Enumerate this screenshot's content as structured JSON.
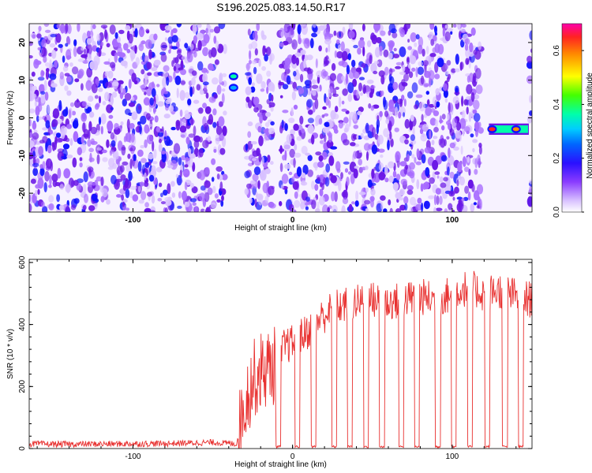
{
  "title": "S196.2025.083.14.50.R17",
  "colors": {
    "snr_line": "#e8302f",
    "colormap": [
      "#f7f2ff",
      "#d9c2ff",
      "#a86cff",
      "#6a16e6",
      "#1010ff",
      "#00aaff",
      "#00ffaa",
      "#ffff00",
      "#ff8800",
      "#ff2222",
      "#ff00aa"
    ]
  },
  "chart_data": [
    {
      "type": "heatmap",
      "xlabel": "Height of straight line (km)",
      "ylabel": "Frequency (Hz)",
      "xlim": [
        -165,
        150
      ],
      "ylim": [
        -25,
        25
      ],
      "xticks": [
        -100,
        0,
        100
      ],
      "yticks": [
        -20,
        -10,
        0,
        10,
        20
      ],
      "colorbar": {
        "label": "Normalized spectral amplitude",
        "range": [
          0.0,
          0.7
        ],
        "ticks": [
          0.0,
          0.2,
          0.4,
          0.6
        ]
      },
      "gaps_x": [
        [
          -42,
          -29
        ],
        [
          -12,
          -8
        ],
        [
          118,
          148
        ]
      ],
      "hotspots": [
        {
          "x": -37,
          "y": 11,
          "value": 0.35
        },
        {
          "x": -37,
          "y": 8,
          "value": 0.25
        },
        {
          "x": 125,
          "y": -3,
          "value": 0.6
        },
        {
          "x": 140,
          "y": -3,
          "value": 0.5
        }
      ]
    },
    {
      "type": "line",
      "xlabel": "Height of straight line (km)",
      "ylabel": "SNR (10 * v/v)",
      "xlim": [
        -165,
        150
      ],
      "ylim": [
        0,
        610
      ],
      "xticks": [
        -100,
        0,
        100
      ],
      "yticks": [
        0,
        200,
        400,
        600
      ],
      "series": [
        {
          "x": [
            -165,
            -140,
            -110,
            -80,
            -50,
            -35,
            -30,
            -25,
            -20,
            -15,
            -10,
            -8,
            -5,
            0,
            5,
            10,
            15,
            20,
            25,
            30,
            40,
            50,
            60,
            70,
            80,
            90,
            100,
            110,
            120,
            130,
            140,
            150
          ],
          "y": [
            15,
            14,
            15,
            16,
            20,
            15,
            150,
            220,
            250,
            260,
            270,
            300,
            330,
            340,
            360,
            380,
            410,
            430,
            450,
            460,
            470,
            480,
            470,
            480,
            490,
            480,
            500,
            520,
            500,
            510,
            490,
            480
          ]
        }
      ],
      "dropouts_x": [
        -9,
        3,
        13,
        26,
        36,
        46,
        56,
        68,
        78,
        91,
        101,
        111,
        122,
        133,
        143
      ]
    }
  ]
}
